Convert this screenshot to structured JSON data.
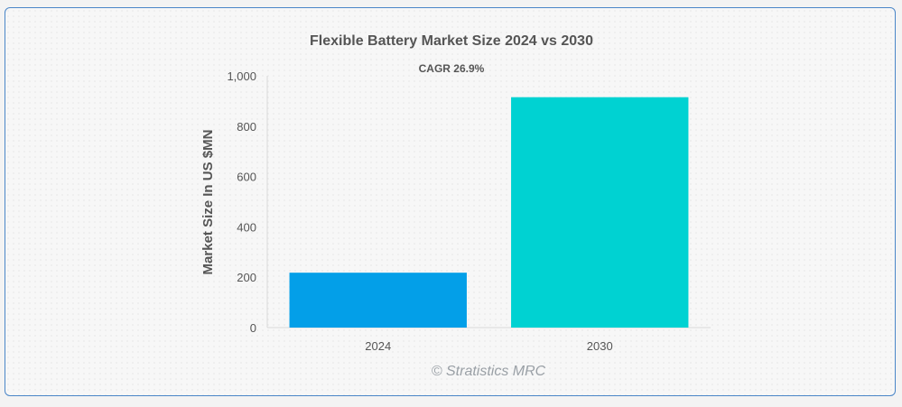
{
  "chart_data": {
    "type": "bar",
    "title": "Flexible Battery Market Size 2024 vs 2030",
    "subtitle": "CAGR 26.9%",
    "xlabel": "",
    "ylabel": "Market Size In US $MN",
    "categories": [
      "2024",
      "2030"
    ],
    "values": [
      218,
      915
    ],
    "ylim": [
      0,
      1000
    ],
    "yticks": [
      0,
      200,
      400,
      600,
      800,
      1000
    ],
    "ytick_labels": [
      "0",
      "200",
      "400",
      "600",
      "800",
      "1,000"
    ],
    "colors": [
      "#039fe8",
      "#00d2d2"
    ],
    "grid": false,
    "legend": "none"
  },
  "watermark": "© Stratistics MRC"
}
